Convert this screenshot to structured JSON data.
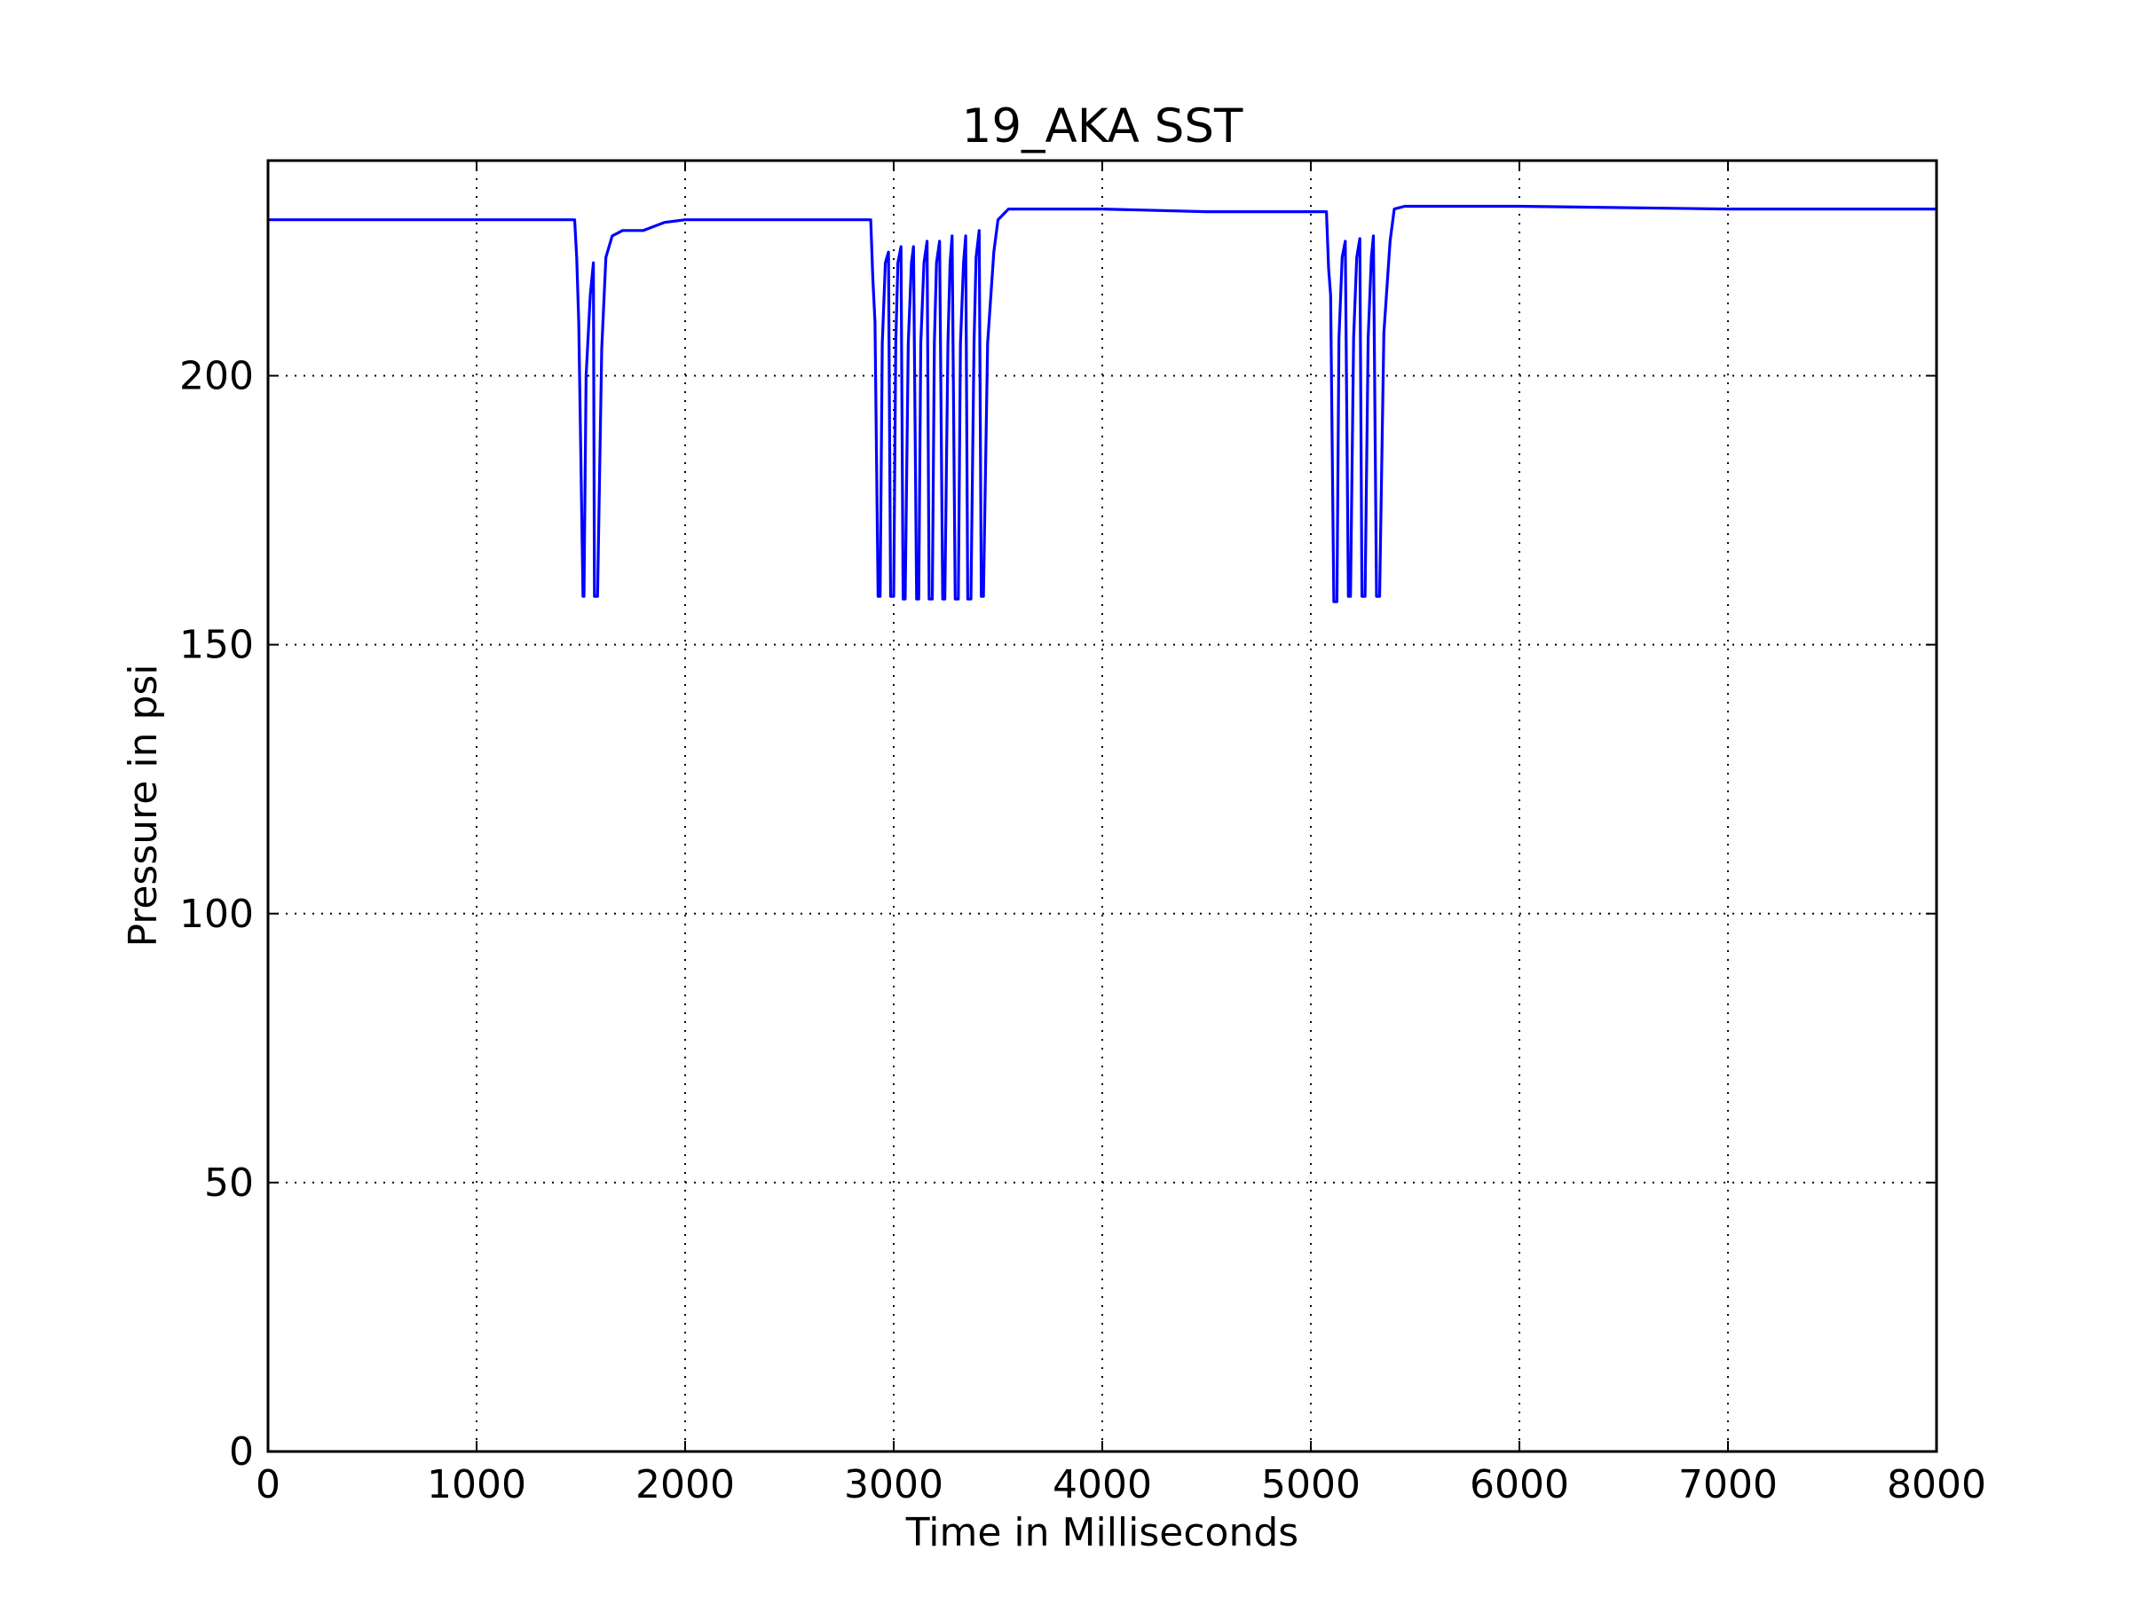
{
  "chart_data": {
    "type": "line",
    "title": "19_AKA SST",
    "xlabel": "Time in Milliseconds",
    "ylabel": "Pressure in psi",
    "xlim": [
      0,
      8000
    ],
    "ylim": [
      0,
      240
    ],
    "xticks": [
      0,
      1000,
      2000,
      3000,
      4000,
      5000,
      6000,
      7000,
      8000
    ],
    "yticks": [
      0,
      50,
      100,
      150,
      200
    ],
    "grid": true,
    "line_color": "#0000ff",
    "series": [
      {
        "x": [
          0,
          500,
          1000,
          1200,
          1470,
          1480,
          1490,
          1510,
          1515,
          1525,
          1545,
          1560,
          1565,
          1580,
          1600,
          1620,
          1650,
          1700,
          1800,
          1900,
          2000,
          2200,
          2400,
          2600,
          2800,
          2890,
          2900,
          2910,
          2925,
          2935,
          2945,
          2960,
          2975,
          2985,
          3000,
          3010,
          3020,
          3035,
          3045,
          3055,
          3070,
          3085,
          3095,
          3110,
          3120,
          3130,
          3145,
          3160,
          3170,
          3185,
          3195,
          3205,
          3220,
          3235,
          3245,
          3260,
          3270,
          3280,
          3295,
          3310,
          3320,
          3335,
          3345,
          3355,
          3370,
          3385,
          3395,
          3410,
          3420,
          3430,
          3450,
          3480,
          3500,
          3550,
          4000,
          4500,
          5000,
          5075,
          5085,
          5095,
          5110,
          5125,
          5135,
          5150,
          5165,
          5180,
          5190,
          5205,
          5220,
          5235,
          5245,
          5260,
          5275,
          5290,
          5300,
          5315,
          5330,
          5350,
          5380,
          5400,
          5450,
          6000,
          7000,
          8000
        ],
        "y": [
          229,
          229,
          229,
          229,
          229,
          222,
          210,
          159,
          159,
          200,
          215,
          221,
          159,
          159,
          205,
          222,
          226,
          227,
          227,
          228.5,
          229,
          229,
          229,
          229,
          229,
          229,
          218,
          210,
          159,
          159,
          206,
          221,
          223,
          159,
          159,
          206,
          221,
          224,
          158.5,
          158.5,
          206,
          221,
          224,
          158.5,
          158.5,
          206,
          221,
          225,
          158.5,
          158.5,
          206,
          221,
          225,
          158.5,
          158.5,
          206,
          221,
          226,
          158.5,
          158.5,
          206,
          221,
          226,
          158.5,
          158.5,
          206,
          222,
          227,
          159,
          159,
          206,
          223,
          229,
          231,
          231,
          230.5,
          230.5,
          230.5,
          220,
          215,
          158,
          158,
          207,
          222,
          225,
          159,
          159,
          207,
          222,
          225.5,
          159,
          159,
          207,
          222,
          226,
          159,
          159,
          208,
          225,
          231,
          231.5,
          231.5,
          231,
          231
        ]
      }
    ]
  }
}
